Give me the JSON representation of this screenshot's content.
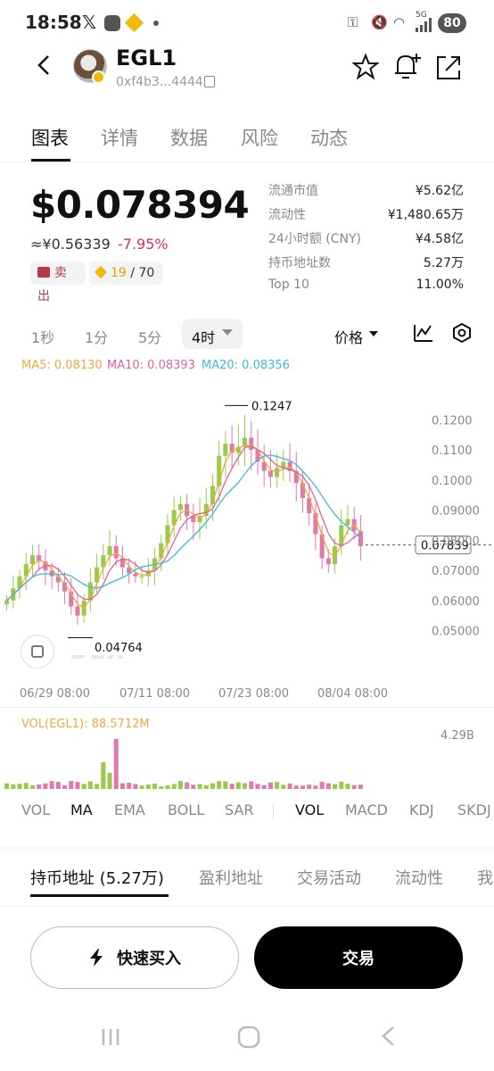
{
  "status_bar": {
    "time": "18:58",
    "battery": "80",
    "left_icons": [
      "x-icon",
      "msg-icon",
      "binance-icon",
      "dot-icon"
    ],
    "right_icons": [
      "key-icon",
      "mute-icon",
      "wifi-icon",
      "signal-icon"
    ],
    "net_label": "5G"
  },
  "header": {
    "token_name": "EGL1",
    "address": "0xf4b3...4444"
  },
  "tabs": [
    "图表",
    "详情",
    "数据",
    "风险",
    "动态"
  ],
  "price_block": {
    "price": "$0.078394",
    "cny_price": "≈¥0.56339",
    "change": "-7.95%",
    "sell_label": "卖出",
    "score": "19",
    "score_total": "/ 70"
  },
  "stats": [
    {
      "label": "流通市值",
      "value": "¥5.62亿"
    },
    {
      "label": "流动性",
      "value": "¥1,480.65万"
    },
    {
      "label": "24小时额 (CNY)",
      "value": "¥4.58亿"
    },
    {
      "label": "持币地址数",
      "value": "5.27万"
    },
    {
      "label": "Top 10",
      "value": "11.00%"
    }
  ],
  "timeframes": [
    "1秒",
    "1分",
    "5分",
    "4时"
  ],
  "price_type": "价格",
  "ma": {
    "ma5": "MA5: 0.08130",
    "ma10": "MA10: 0.08393",
    "ma20": "MA20: 0.08356",
    "colors": {
      "ma5": "#f0a93b",
      "ma10": "#e0609a",
      "ma20": "#3fb8d8"
    }
  },
  "chart_data": {
    "type": "candlestick",
    "y_ticks": [
      "0.1200",
      "0.1100",
      "0.1000",
      "0.09000",
      "0.08000",
      "0.07000",
      "0.06000",
      "0.05000"
    ],
    "x_ticks": [
      "06/29 08:00",
      "07/11 08:00",
      "07/23 08:00",
      "08/04 08:00"
    ],
    "high_label": "0.1247",
    "low_label": "0.04764",
    "current_price": "0.07839",
    "ylim": [
      0.046,
      0.126
    ],
    "watermark": "DEX",
    "volume_label": "VOL(EGL1): 88.5712M",
    "volume_max": "4.29B",
    "closes": [
      0.06,
      0.064,
      0.068,
      0.072,
      0.075,
      0.073,
      0.07,
      0.068,
      0.066,
      0.063,
      0.058,
      0.055,
      0.06,
      0.066,
      0.071,
      0.075,
      0.078,
      0.074,
      0.071,
      0.069,
      0.068,
      0.068,
      0.07,
      0.074,
      0.079,
      0.085,
      0.09,
      0.092,
      0.088,
      0.086,
      0.088,
      0.092,
      0.098,
      0.108,
      0.112,
      0.109,
      0.111,
      0.114,
      0.11,
      0.106,
      0.103,
      0.101,
      0.104,
      0.106,
      0.103,
      0.099,
      0.094,
      0.089,
      0.082,
      0.074,
      0.072,
      0.078,
      0.085,
      0.087,
      0.083,
      0.078
    ]
  },
  "indicators_main": [
    "VOL",
    "MA",
    "EMA",
    "BOLL",
    "SAR"
  ],
  "indicators_sub": [
    "VOL",
    "MACD",
    "KDJ",
    "SKDJ"
  ],
  "bottom_tabs": [
    "持币地址 (5.27万)",
    "盈利地址",
    "交易活动",
    "流动性",
    "我"
  ],
  "actions": {
    "quick_buy": "快速买入",
    "trade": "交易"
  }
}
